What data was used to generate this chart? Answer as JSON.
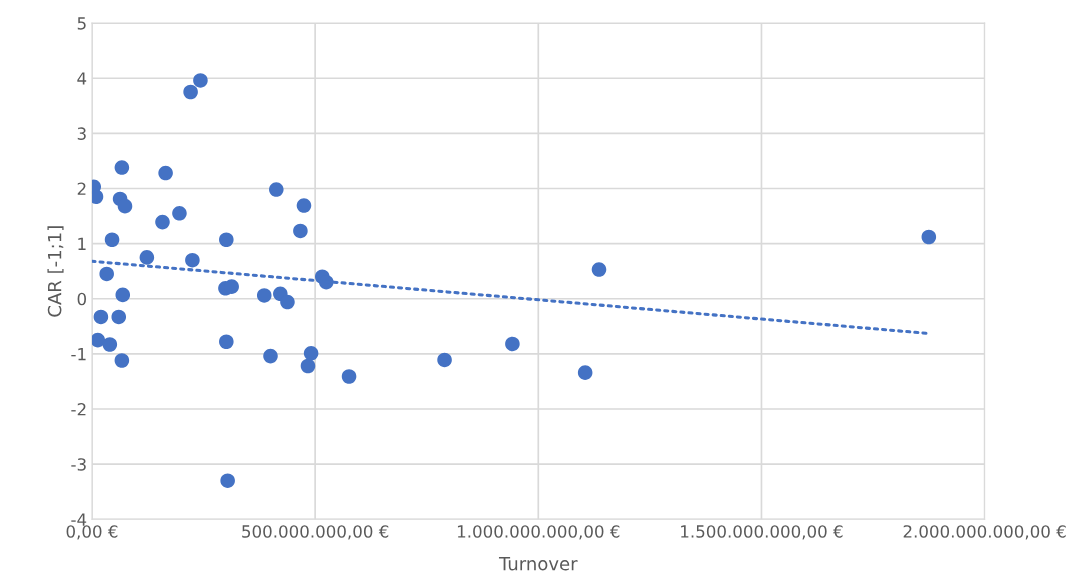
{
  "chart_data": {
    "type": "scatter",
    "xlabel": "Turnover",
    "ylabel": "CAR [-1;1]",
    "x": [
      4000000,
      9000000,
      20000000,
      13000000,
      33000000,
      40000000,
      45000000,
      60000000,
      63000000,
      67000000,
      67000000,
      69000000,
      74000000,
      123000000,
      158000000,
      165000000,
      196000000,
      221000000,
      225000000,
      243000000,
      299000000,
      301000000,
      301000000,
      304000000,
      313000000,
      386000000,
      400000000,
      413000000,
      422000000,
      438000000,
      467000000,
      475000000,
      484000000,
      491000000,
      516000000,
      525000000,
      576000000,
      790000000,
      942000000,
      1105000000,
      1136000000,
      1875000000
    ],
    "series": [
      {
        "color": "#4472c4",
        "marker": "circle",
        "values": [
          2.03,
          1.85,
          -0.33,
          -0.75,
          0.45,
          -0.83,
          1.07,
          -0.33,
          1.81,
          2.38,
          -1.12,
          0.07,
          1.68,
          0.75,
          1.39,
          2.28,
          1.55,
          3.75,
          0.7,
          3.96,
          0.19,
          -0.78,
          1.07,
          -3.3,
          0.22,
          0.06,
          -1.04,
          1.98,
          0.09,
          -0.06,
          1.23,
          1.69,
          -1.22,
          -0.99,
          0.4,
          0.3,
          -1.41,
          -1.11,
          -0.82,
          -1.34,
          0.53,
          1.12
        ]
      },
      {
        "type": "line",
        "color": "#4472c4",
        "line_style": "dotted",
        "marker": "none",
        "x": [
          0,
          1875000000
        ],
        "values": [
          0.68,
          -0.63
        ]
      }
    ],
    "xlim": [
      0,
      2000000000
    ],
    "xticks": [
      {
        "value": 0,
        "label": "0,00 €"
      },
      {
        "value": 500000000,
        "label": "500.000.000,00 €"
      },
      {
        "value": 1000000000,
        "label": "1.000.000.000,00 €"
      },
      {
        "value": 1500000000,
        "label": "1.500.000.000,00 €"
      },
      {
        "value": 2000000000,
        "label": "2.000.000.000,00 €"
      }
    ],
    "ylim": [
      -4,
      5
    ],
    "yticks": [
      -4,
      -3,
      -2,
      -1,
      0,
      1,
      2,
      3,
      4,
      5
    ],
    "grid": true,
    "legend": false
  }
}
